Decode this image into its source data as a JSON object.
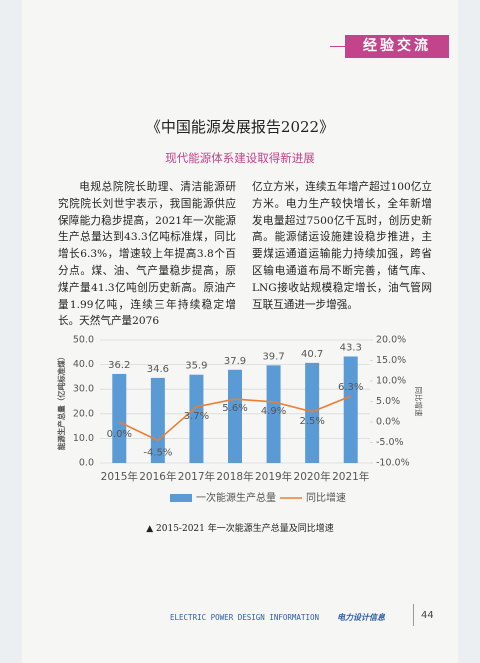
{
  "header": {
    "tag": "经验交流"
  },
  "article": {
    "title": "《中国能源发展报告2022》",
    "subtitle": "现代能源体系建设取得新进展",
    "columns": [
      "电规总院院长助理、清洁能源研究院院长刘世宇表示，我国能源供应保障能力稳步提高，2021年一次能源生产总量达到43.3亿吨标准煤，同比增长6.3%，增速较上年提高3.8个百分点。煤、油、气产量稳步提高，原煤产量41.3亿吨创历史新高。原油产量1.99亿吨，连续三年持续稳定增长。天然气产量2076",
      "亿立方米，连续五年增产超过100亿立方米。电力生产较快增长，全年新增发电量超过7500亿千瓦时，创历史新高。能源储运设施建设稳步推进，主要煤运通道运输能力持续加强，跨省区输电通道布局不断完善，储气库、LNG接收站规模稳定增长，油气管网互联互通进一步增强。"
    ]
  },
  "chart_data": {
    "type": "bar",
    "categories": [
      "2015年",
      "2016年",
      "2017年",
      "2018年",
      "2019年",
      "2020年",
      "2021年"
    ],
    "series": [
      {
        "name": "一次能源生产总量",
        "color": "#5b9bd5",
        "values": [
          36.2,
          34.6,
          35.9,
          37.9,
          39.7,
          40.7,
          43.3
        ]
      },
      {
        "name": "同比增速",
        "color": "#ed7d31",
        "type": "line",
        "axis": "y2",
        "values": [
          0.0,
          -4.5,
          3.7,
          5.6,
          4.9,
          2.5,
          6.3
        ],
        "value_labels": [
          "0.0%",
          "-4.5%",
          "3.7%",
          "5.6%",
          "4.9%",
          "2.5%",
          "6.3%"
        ]
      }
    ],
    "y_label": "能源生产总量（亿吨标准煤）",
    "y2_label": "同比增速",
    "ylim": [
      0,
      50
    ],
    "yticks": [
      {
        "value": 0,
        "label": "0.0"
      },
      {
        "value": 10,
        "label": "10.0"
      },
      {
        "value": 20,
        "label": "20.0"
      },
      {
        "value": 30,
        "label": "30.0"
      },
      {
        "value": 40,
        "label": "40.0"
      },
      {
        "value": 50,
        "label": "50.0"
      }
    ],
    "y2lim": [
      -10,
      20
    ],
    "y2ticks": [
      {
        "value": -10,
        "label": "-10.0%"
      },
      {
        "value": -5,
        "label": "-5.0%"
      },
      {
        "value": 0,
        "label": "0.0%"
      },
      {
        "value": 5,
        "label": "5.0%"
      },
      {
        "value": 10,
        "label": "10.0%"
      },
      {
        "value": 15,
        "label": "15.0%"
      },
      {
        "value": 20,
        "label": "20.0%"
      }
    ],
    "grid": true,
    "legend": "bottom"
  },
  "caption": "▲ 2015-2021 年一次能源生产总量及同比增速",
  "footer": {
    "publication_en": "ELECTRIC POWER DESIGN INFORMATION",
    "publication_cn": "电力设计信息",
    "page": "44"
  }
}
